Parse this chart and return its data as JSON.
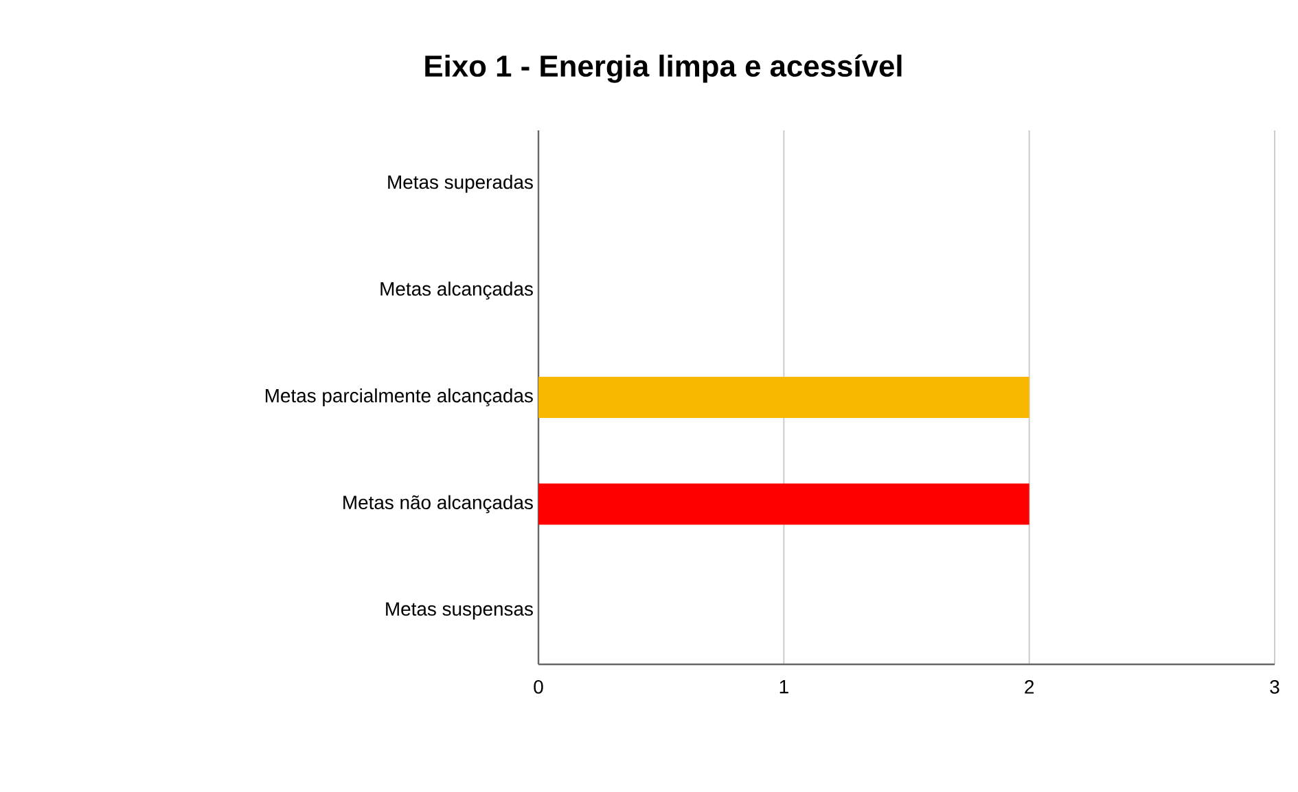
{
  "chart_data": {
    "type": "bar",
    "orientation": "horizontal",
    "title": "Eixo 1 - Energia limpa e acessível",
    "categories": [
      "Metas superadas",
      "Metas alcançadas",
      "Metas parcialmente alcançadas",
      "Metas não alcançadas",
      "Metas suspensas"
    ],
    "values": [
      0,
      0,
      2,
      2,
      0
    ],
    "colors": [
      null,
      null,
      "#f9b800",
      "#ff0000",
      null
    ],
    "xlim": [
      0,
      3
    ],
    "xticks": [
      0,
      1,
      2,
      3
    ],
    "grid": "x"
  }
}
